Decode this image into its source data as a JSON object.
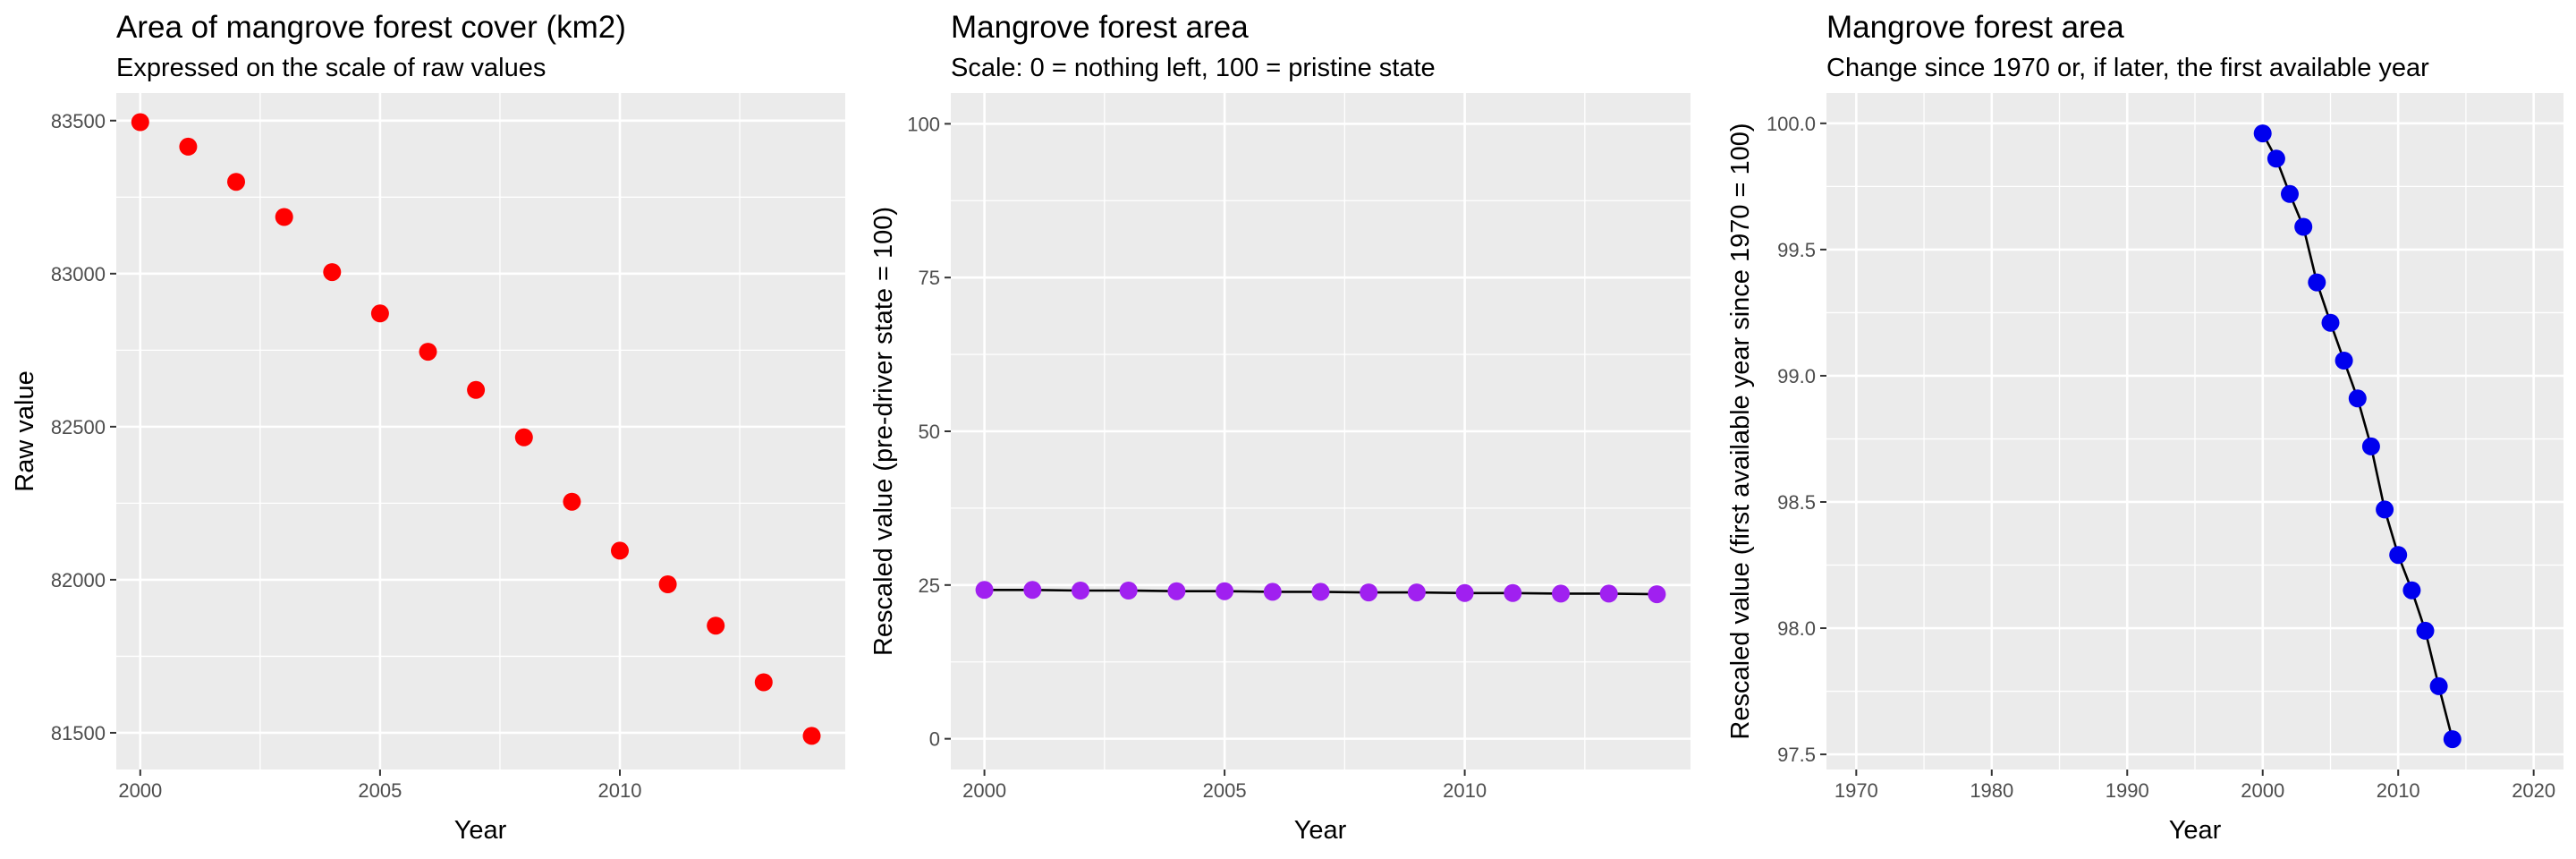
{
  "chart_data": [
    {
      "type": "scatter",
      "title": "Area of mangrove forest cover (km2)",
      "subtitle": "Expressed on the scale of raw values",
      "xlabel": "Year",
      "ylabel": "Raw value",
      "xlim": [
        1999.5,
        2014.7
      ],
      "ylim": [
        81380,
        83590
      ],
      "x_ticks": [
        2000,
        2005,
        2010
      ],
      "y_ticks": [
        81500,
        82000,
        82500,
        83000,
        83500
      ],
      "y_tick_labels": [
        "81500",
        "82000",
        "82500",
        "83000",
        "83500"
      ],
      "grid": true,
      "connect_points": false,
      "point_color": "#ff0000",
      "series": [
        {
          "x": [
            2000,
            2001,
            2002,
            2003,
            2004,
            2005,
            2006,
            2007,
            2008,
            2009,
            2010,
            2011,
            2012,
            2013,
            2014
          ],
          "values": [
            83495,
            83415,
            83300,
            83185,
            83005,
            82870,
            82745,
            82620,
            82465,
            82255,
            82095,
            81985,
            81850,
            81665,
            81490
          ]
        }
      ]
    },
    {
      "type": "line",
      "title": "Mangrove forest area",
      "subtitle": "Scale: 0 = nothing left, 100 = pristine state",
      "xlabel": "Year",
      "ylabel": "Rescaled value (pre-driver state = 100)",
      "xlim": [
        1999.3,
        2014.7
      ],
      "ylim": [
        -5,
        105
      ],
      "x_ticks": [
        2000,
        2005,
        2010
      ],
      "y_ticks": [
        0,
        25,
        50,
        75,
        100
      ],
      "y_tick_labels": [
        "0",
        "25",
        "50",
        "75",
        "100"
      ],
      "grid": true,
      "connect_points": true,
      "point_color": "#a020f0",
      "series": [
        {
          "x": [
            2000,
            2001,
            2002,
            2003,
            2004,
            2005,
            2006,
            2007,
            2008,
            2009,
            2010,
            2011,
            2012,
            2013,
            2014
          ],
          "values": [
            24.2,
            24.2,
            24.1,
            24.1,
            24.0,
            24.0,
            23.9,
            23.9,
            23.8,
            23.8,
            23.7,
            23.7,
            23.6,
            23.6,
            23.5
          ]
        }
      ]
    },
    {
      "type": "line",
      "title": "Mangrove forest area",
      "subtitle": "Change since 1970 or, if later, the first available year",
      "xlabel": "Year",
      "ylabel": "Rescaled value (first available year since 1970 = 100)",
      "xlim": [
        1967.8,
        2022.2
      ],
      "ylim": [
        97.44,
        100.12
      ],
      "x_ticks": [
        1970,
        1980,
        1990,
        2000,
        2010,
        2020
      ],
      "y_ticks": [
        97.5,
        98.0,
        98.5,
        99.0,
        99.5,
        100.0
      ],
      "y_tick_labels": [
        "97.5",
        "98.0",
        "98.5",
        "99.0",
        "99.5",
        "100.0"
      ],
      "grid": true,
      "connect_points": true,
      "point_color": "#0000ee",
      "series": [
        {
          "x": [
            2000,
            2001,
            2002,
            2003,
            2004,
            2005,
            2006,
            2007,
            2008,
            2009,
            2010,
            2011,
            2012,
            2013,
            2014
          ],
          "values": [
            99.96,
            99.86,
            99.72,
            99.59,
            99.37,
            99.21,
            99.06,
            98.91,
            98.72,
            98.47,
            98.29,
            98.15,
            97.99,
            97.77,
            97.56
          ]
        }
      ]
    }
  ]
}
